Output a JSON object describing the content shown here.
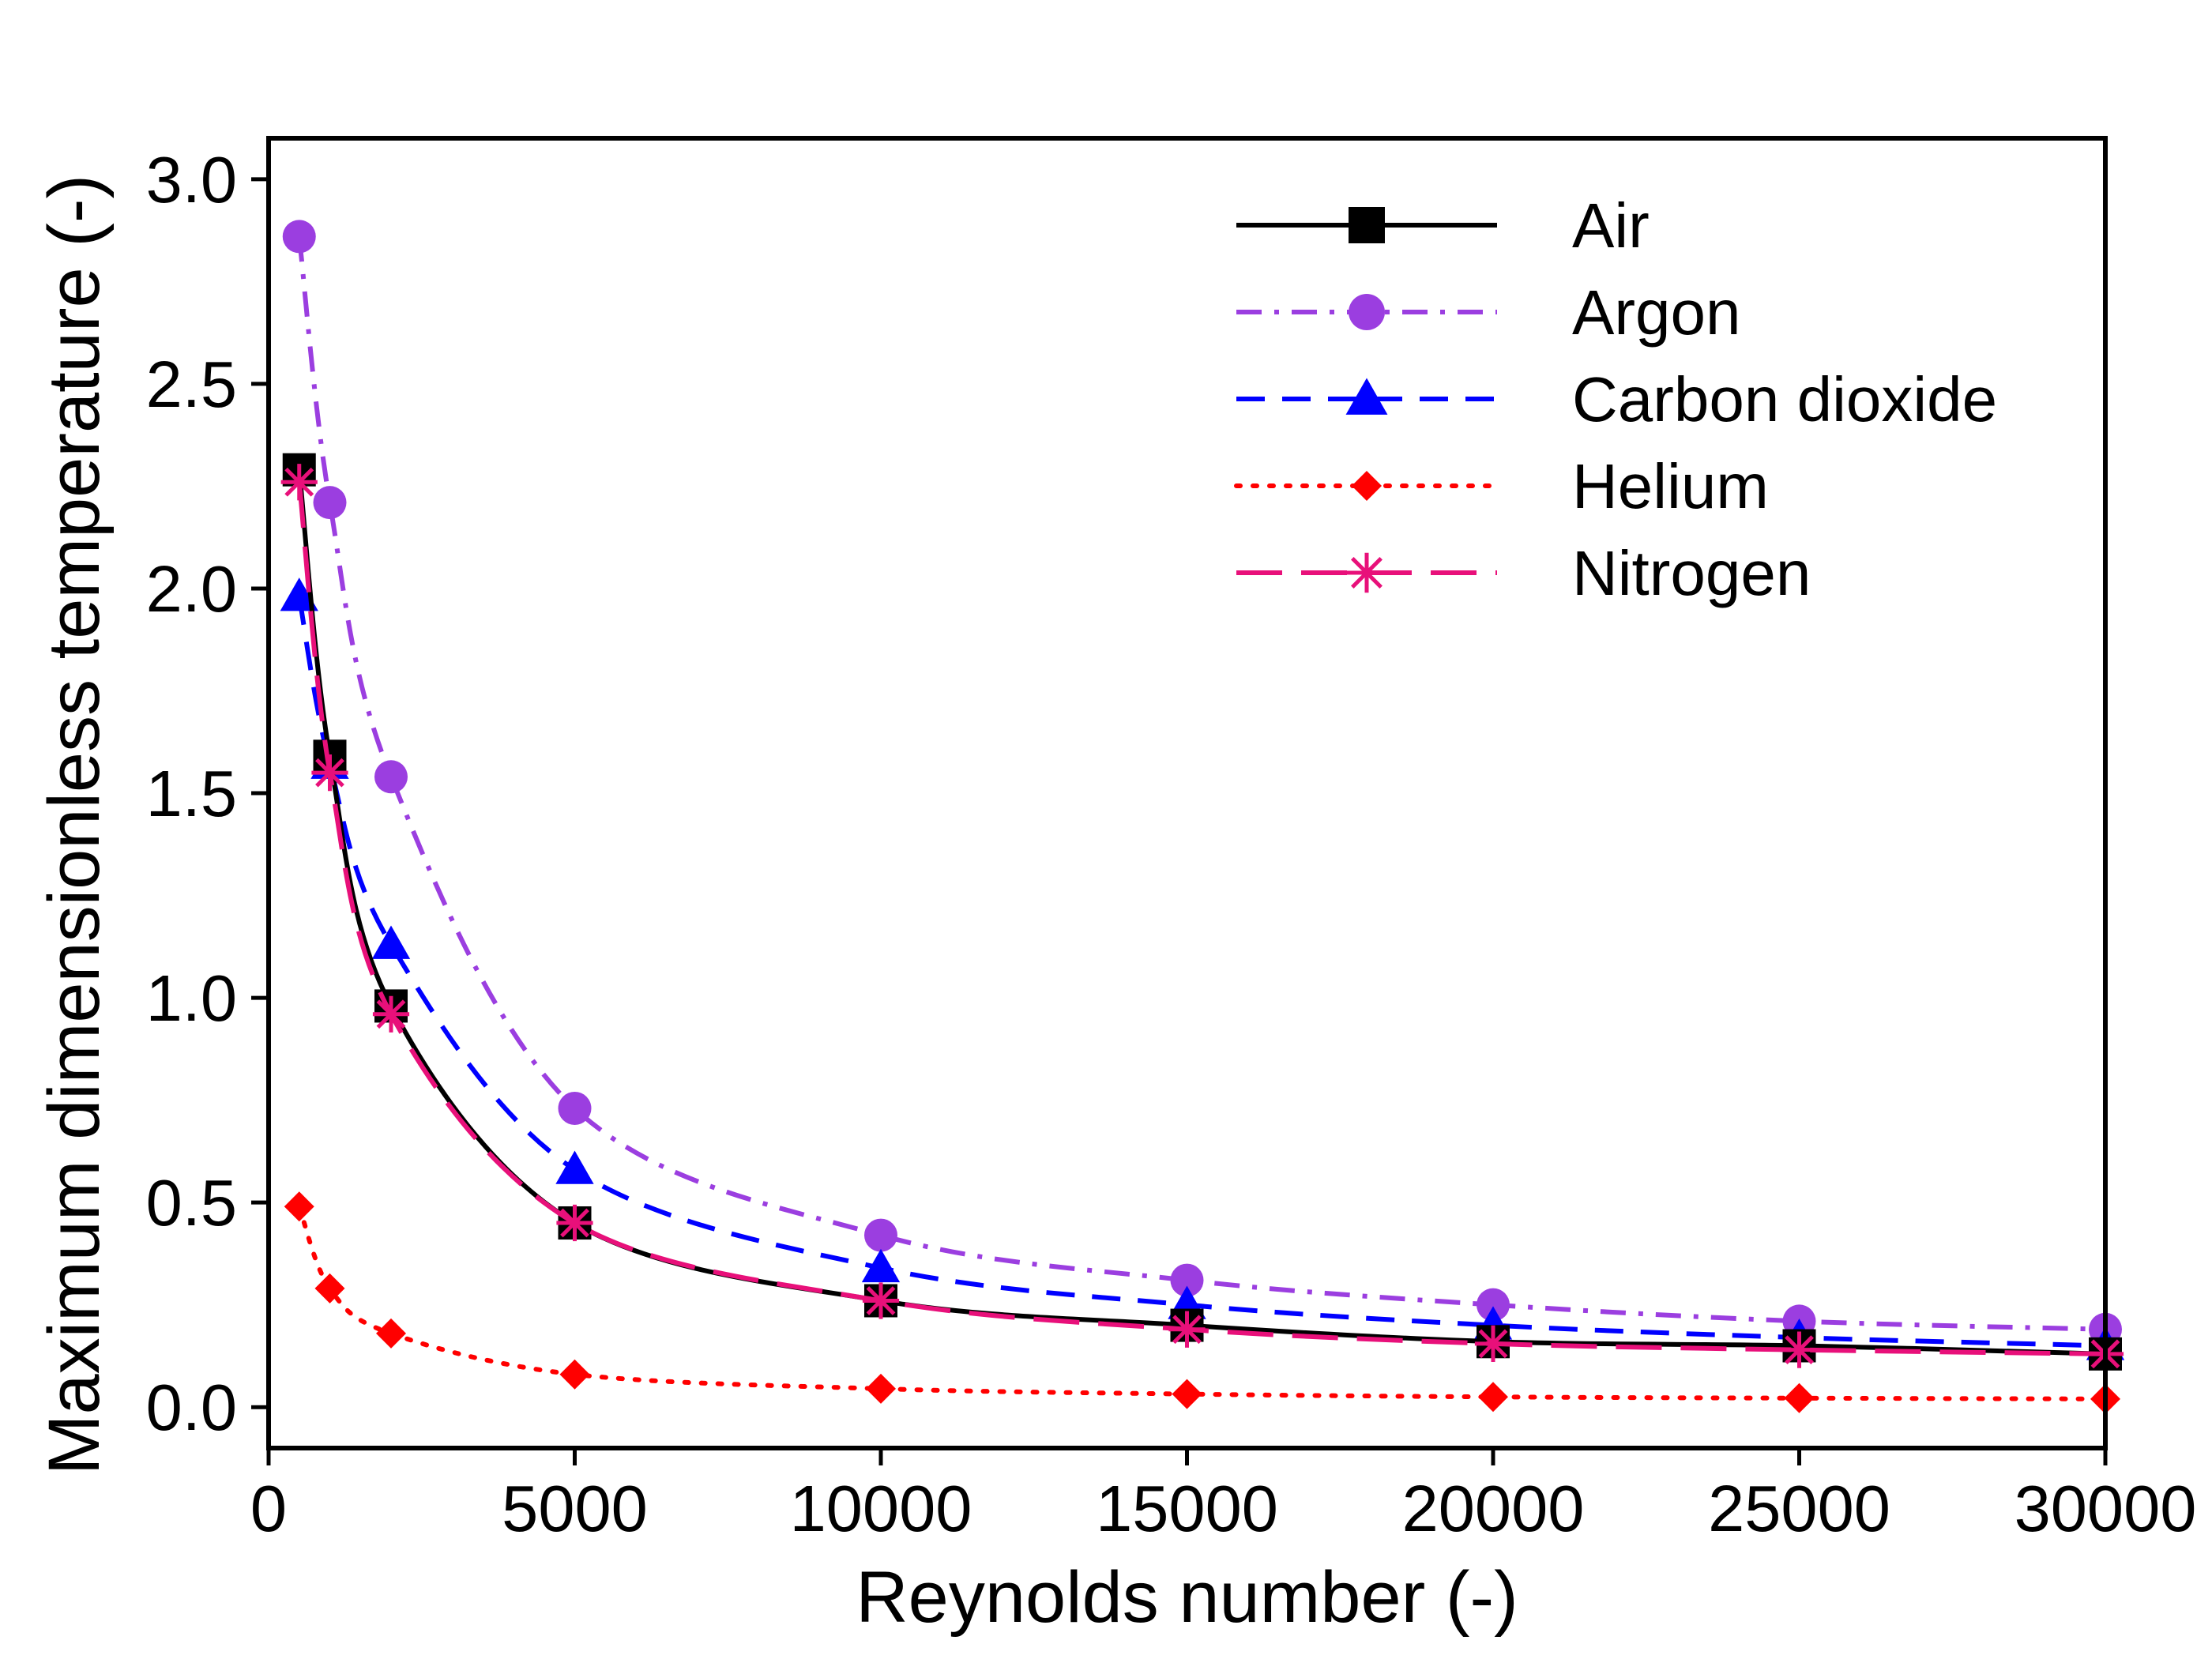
{
  "chart_data": {
    "type": "line",
    "xlabel": "Reynolds number (-)",
    "ylabel": "Maximum dimensionless temperature (-)",
    "xlim": [
      0,
      30000
    ],
    "ylim": [
      -0.1,
      3.1
    ],
    "x_ticks": [
      0,
      5000,
      10000,
      15000,
      20000,
      25000,
      30000
    ],
    "x_tick_labels": [
      "0",
      "5000",
      "10000",
      "15000",
      "20000",
      "25000",
      "30000"
    ],
    "y_ticks": [
      0.0,
      0.5,
      1.0,
      1.5,
      2.0,
      2.5,
      3.0
    ],
    "y_tick_labels": [
      "0.0",
      "0.5",
      "1.0",
      "1.5",
      "2.0",
      "2.5",
      "3.0"
    ],
    "grid": false,
    "legend_position": "top-right",
    "x": [
      500,
      1000,
      2000,
      5000,
      10000,
      15000,
      20000,
      25000,
      30000
    ],
    "series": [
      {
        "name": "Air",
        "color": "#000000",
        "marker": "square",
        "line_style": "solid",
        "values": [
          2.29,
          1.59,
          0.98,
          0.45,
          0.26,
          0.2,
          0.16,
          0.15,
          0.13
        ]
      },
      {
        "name": "Argon",
        "color": "#9b3ee0",
        "marker": "circle",
        "line_style": "dash-dot",
        "values": [
          2.86,
          2.21,
          1.54,
          0.73,
          0.42,
          0.31,
          0.25,
          0.21,
          0.19
        ]
      },
      {
        "name": "Carbon dioxide",
        "color": "#0000ff",
        "marker": "triangle",
        "line_style": "dashed",
        "values": [
          1.98,
          1.57,
          1.13,
          0.58,
          0.34,
          0.25,
          0.2,
          0.17,
          0.15
        ]
      },
      {
        "name": "Helium",
        "color": "#ff0000",
        "marker": "diamond",
        "line_style": "dotted",
        "values": [
          0.49,
          0.29,
          0.18,
          0.08,
          0.045,
          0.032,
          0.025,
          0.022,
          0.02
        ]
      },
      {
        "name": "Nitrogen",
        "color": "#e8107a",
        "marker": "asterisk",
        "line_style": "long-dash",
        "values": [
          2.26,
          1.55,
          0.96,
          0.45,
          0.26,
          0.19,
          0.155,
          0.14,
          0.13
        ]
      }
    ]
  }
}
